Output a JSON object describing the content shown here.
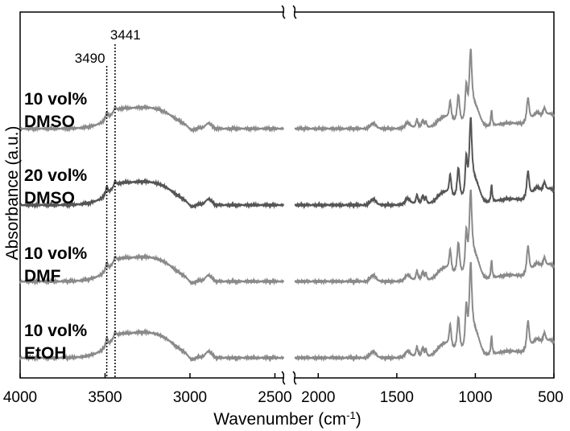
{
  "chart_data": {
    "type": "line",
    "title": "",
    "xlabel": "Wavenumber (cm",
    "xlabel_sup": "-1",
    "xlabel_close": ")",
    "ylabel": "Absorbance (a.u.)",
    "xlim": [
      4000,
      500
    ],
    "axis_break": [
      2450,
      2150
    ],
    "x_ticks": [
      {
        "value": 4000,
        "label": "4000"
      },
      {
        "value": 3500,
        "label": "3500"
      },
      {
        "value": 3000,
        "label": "3000"
      },
      {
        "value": 2500,
        "label": "2500"
      },
      {
        "value": 2000,
        "label": "2000"
      },
      {
        "value": 1500,
        "label": "1500"
      },
      {
        "value": 1000,
        "label": "1000"
      },
      {
        "value": 500,
        "label": "500"
      }
    ],
    "peak_markers": [
      {
        "value": 3490,
        "label": "3490"
      },
      {
        "value": 3441,
        "label": "3441"
      }
    ],
    "series": [
      {
        "label_line1": "10 vol%",
        "label_line2": "DMSO",
        "offset": 3,
        "amp": 1.0,
        "color": "#8a8a8a"
      },
      {
        "label_line1": "20 vol%",
        "label_line2": "DMSO",
        "offset": 2,
        "amp": 1.1,
        "color": "#555555"
      },
      {
        "label_line1": "10 vol%",
        "label_line2": "DMF",
        "offset": 1,
        "amp": 1.15,
        "color": "#8a8a8a"
      },
      {
        "label_line1": "10 vol%",
        "label_line2": "EtOH",
        "offset": 0,
        "amp": 1.2,
        "color": "#8a8a8a"
      }
    ]
  }
}
